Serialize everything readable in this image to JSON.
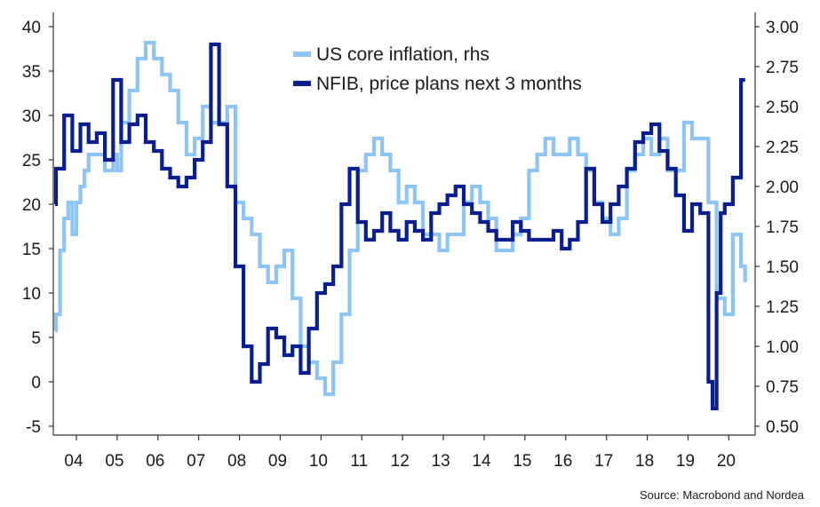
{
  "chart_data": {
    "type": "line",
    "x_categories": [
      "04",
      "05",
      "06",
      "07",
      "08",
      "09",
      "10",
      "11",
      "12",
      "13",
      "14",
      "15",
      "16",
      "17",
      "18",
      "19",
      "20"
    ],
    "left_axis": {
      "ticks": [
        40,
        35,
        30,
        25,
        20,
        15,
        10,
        5,
        0,
        -5
      ],
      "ylim": [
        -5,
        40
      ]
    },
    "right_axis": {
      "ticks": [
        "3.00",
        "2.75",
        "2.50",
        "2.25",
        "2.00",
        "1.75",
        "1.50",
        "1.25",
        "1.00",
        "0.75",
        "0.50"
      ],
      "ylim": [
        0.5,
        3.0
      ]
    },
    "grid": false,
    "legend_position": "top-center",
    "series": [
      {
        "name": "US core inflation, rhs",
        "axis": "right",
        "color": "#8ec5f2",
        "x": [
          2003.8,
          2004.0,
          2004.1,
          2004.2,
          2004.3,
          2004.4,
          2004.5,
          2004.6,
          2004.7,
          2004.8,
          2005.0,
          2005.2,
          2005.4,
          2005.5,
          2005.6,
          2005.8,
          2006.0,
          2006.2,
          2006.4,
          2006.6,
          2006.8,
          2007.0,
          2007.2,
          2007.4,
          2007.6,
          2007.8,
          2008.0,
          2008.2,
          2008.4,
          2008.6,
          2008.8,
          2009.0,
          2009.2,
          2009.4,
          2009.6,
          2009.8,
          2010.0,
          2010.2,
          2010.4,
          2010.6,
          2010.8,
          2011.0,
          2011.2,
          2011.4,
          2011.6,
          2011.8,
          2012.0,
          2012.2,
          2012.4,
          2012.6,
          2012.8,
          2013.0,
          2013.2,
          2013.4,
          2013.6,
          2013.8,
          2014.0,
          2014.2,
          2014.4,
          2014.6,
          2014.8,
          2015.0,
          2015.2,
          2015.4,
          2015.6,
          2015.8,
          2016.0,
          2016.2,
          2016.4,
          2016.6,
          2016.8,
          2017.0,
          2017.2,
          2017.4,
          2017.6,
          2017.8,
          2018.0,
          2018.2,
          2018.4,
          2018.6,
          2018.8,
          2019.0,
          2019.2,
          2019.4,
          2019.6,
          2019.8,
          2020.0,
          2020.2,
          2020.4,
          2020.6,
          2020.8,
          2020.9
        ],
        "values": [
          1.1,
          1.2,
          1.6,
          1.8,
          1.9,
          1.7,
          1.9,
          2.0,
          2.1,
          2.2,
          2.2,
          2.1,
          2.2,
          2.1,
          2.4,
          2.6,
          2.8,
          2.9,
          2.8,
          2.7,
          2.6,
          2.4,
          2.2,
          2.3,
          2.5,
          2.4,
          2.4,
          2.5,
          1.9,
          1.8,
          1.7,
          1.5,
          1.4,
          1.5,
          1.6,
          1.3,
          1.0,
          0.9,
          0.8,
          0.7,
          0.9,
          1.2,
          1.6,
          2.1,
          2.2,
          2.3,
          2.2,
          2.1,
          1.9,
          2.0,
          1.9,
          1.7,
          1.7,
          1.6,
          1.7,
          1.7,
          1.9,
          2.0,
          1.9,
          1.8,
          1.6,
          1.6,
          1.7,
          1.8,
          2.1,
          2.2,
          2.3,
          2.2,
          2.2,
          2.3,
          2.2,
          2.1,
          1.9,
          1.8,
          1.7,
          1.8,
          2.1,
          2.2,
          2.3,
          2.2,
          2.3,
          2.1,
          2.1,
          2.4,
          2.3,
          2.3,
          1.9,
          1.3,
          1.2,
          1.7,
          1.5,
          1.4
        ]
      },
      {
        "name": "NFIB, price plans next 3 months",
        "axis": "left",
        "color": "#0a1f8f",
        "x": [
          2003.8,
          2004.0,
          2004.2,
          2004.4,
          2004.6,
          2004.8,
          2005.0,
          2005.2,
          2005.4,
          2005.6,
          2005.8,
          2006.0,
          2006.2,
          2006.4,
          2006.6,
          2006.8,
          2007.0,
          2007.2,
          2007.4,
          2007.6,
          2007.8,
          2008.0,
          2008.2,
          2008.4,
          2008.6,
          2008.8,
          2009.0,
          2009.2,
          2009.4,
          2009.6,
          2009.8,
          2010.0,
          2010.2,
          2010.4,
          2010.6,
          2010.8,
          2011.0,
          2011.2,
          2011.4,
          2011.6,
          2011.8,
          2012.0,
          2012.2,
          2012.4,
          2012.6,
          2012.8,
          2013.0,
          2013.2,
          2013.4,
          2013.6,
          2013.8,
          2014.0,
          2014.2,
          2014.4,
          2014.6,
          2014.8,
          2015.0,
          2015.2,
          2015.4,
          2015.6,
          2015.8,
          2016.0,
          2016.2,
          2016.4,
          2016.6,
          2016.8,
          2017.0,
          2017.2,
          2017.4,
          2017.6,
          2017.8,
          2018.0,
          2018.2,
          2018.4,
          2018.6,
          2018.8,
          2019.0,
          2019.2,
          2019.4,
          2019.6,
          2019.8,
          2020.0,
          2020.1,
          2020.2,
          2020.3,
          2020.4,
          2020.6,
          2020.8,
          2020.9
        ],
        "values": [
          20,
          24,
          30,
          26,
          29,
          27,
          28,
          25,
          34,
          27,
          29,
          30,
          27,
          26,
          24,
          23,
          22,
          23,
          25,
          27,
          38,
          29,
          22,
          13,
          4,
          0,
          2,
          6,
          5,
          3,
          4,
          1,
          6,
          10,
          11,
          13,
          20,
          24,
          18,
          16,
          17,
          19,
          17,
          16,
          18,
          17,
          16,
          19,
          20,
          21,
          22,
          20,
          19,
          18,
          17,
          16,
          16,
          18,
          17,
          16,
          16,
          16,
          17,
          15,
          16,
          18,
          24,
          20,
          18,
          20,
          22,
          24,
          27,
          28,
          29,
          26,
          24,
          21,
          17,
          20,
          19,
          0,
          -3,
          10,
          19,
          20,
          23,
          34,
          34
        ]
      }
    ]
  },
  "legend": {
    "items": [
      {
        "label": "US core inflation, rhs",
        "color": "#8ec5f2"
      },
      {
        "label": "NFIB, price plans next 3 months",
        "color": "#0a1f8f"
      }
    ]
  },
  "source": "Source: Macrobond and Nordea"
}
